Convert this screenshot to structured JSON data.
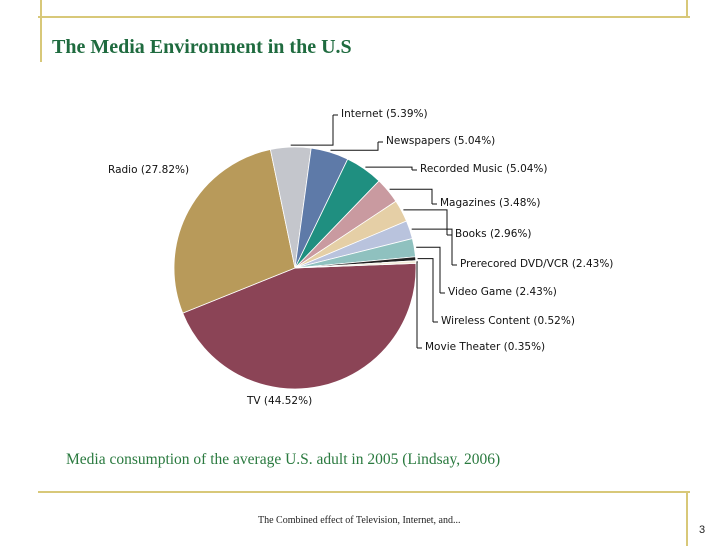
{
  "slide": {
    "title": "The Media Environment in the U.S",
    "caption": "Media consumption of the average U.S. adult in 2005 (Lindsay, 2006)",
    "footer": "The Combined effect of Television, Internet, and...",
    "page_number": "3"
  },
  "chart_data": {
    "type": "pie",
    "title": "",
    "slices": [
      {
        "name": "TV",
        "value": 44.52,
        "label": "TV (44.52%)",
        "color": "#8b4456"
      },
      {
        "name": "Radio",
        "value": 27.82,
        "label": "Radio (27.82%)",
        "color": "#b89a5a"
      },
      {
        "name": "Internet",
        "value": 5.39,
        "label": "Internet (5.39%)",
        "color": "#c4c6cc"
      },
      {
        "name": "Newspapers",
        "value": 5.04,
        "label": "Newspapers (5.04%)",
        "color": "#5e7aa8"
      },
      {
        "name": "Recorded Music",
        "value": 5.04,
        "label": "Recorded Music (5.04%)",
        "color": "#1f8f80"
      },
      {
        "name": "Magazines",
        "value": 3.48,
        "label": "Magazines (3.48%)",
        "color": "#c99aa0"
      },
      {
        "name": "Books",
        "value": 2.96,
        "label": "Books (2.96%)",
        "color": "#e5cfa6"
      },
      {
        "name": "Prerecored DVD/VCR",
        "value": 2.43,
        "label": "Prerecored DVD/VCR (2.43%)",
        "color": "#b9c3dd"
      },
      {
        "name": "Video Game",
        "value": 2.43,
        "label": "Video Game (2.43%)",
        "color": "#8fc1bf"
      },
      {
        "name": "Wireless Content",
        "value": 0.52,
        "label": "Wireless Content (0.52%)",
        "color": "#222222"
      },
      {
        "name": "Movie Theater",
        "value": 0.35,
        "label": "Movie Theater (0.35%)",
        "color": "#f2ecd8"
      }
    ]
  }
}
